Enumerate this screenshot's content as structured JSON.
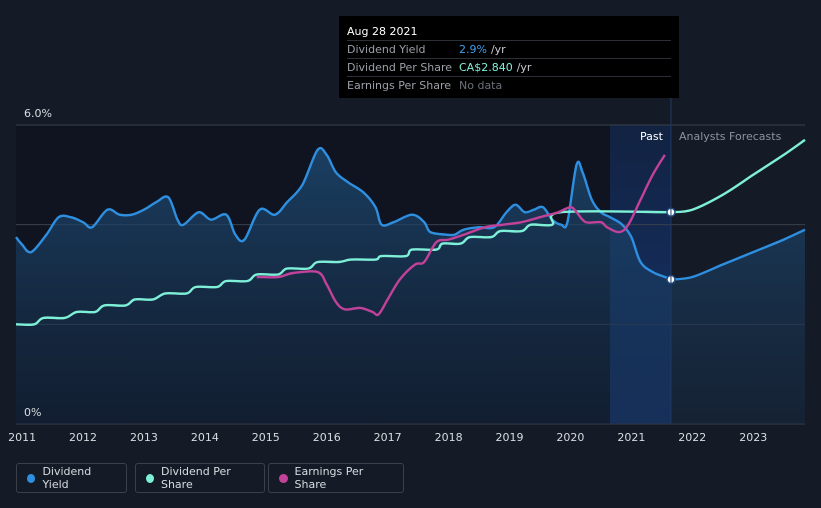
{
  "tooltip": {
    "date": "Aug 28 2021",
    "rows": [
      {
        "label": "Dividend Yield",
        "value": "2.9%",
        "unit": "/yr"
      },
      {
        "label": "Dividend Per Share",
        "value": "CA$2.840",
        "unit": "/yr"
      },
      {
        "label": "Earnings Per Share",
        "value": "No data",
        "unit": ""
      }
    ]
  },
  "legend": [
    {
      "label": "Dividend Yield",
      "color": "#2e8fe0"
    },
    {
      "label": "Dividend Per Share",
      "color": "#7ff0d8"
    },
    {
      "label": "Earnings Per Share",
      "color": "#c2429a"
    }
  ],
  "chart_data": {
    "type": "line",
    "y_axis_labels": [
      "6.0%",
      "0%"
    ],
    "ylim": [
      0,
      6.0
    ],
    "xlim": [
      2010.9,
      2023.85
    ],
    "x_ticks": [
      2011,
      2012,
      2013,
      2014,
      2015,
      2016,
      2017,
      2018,
      2019,
      2020,
      2021,
      2022,
      2023
    ],
    "x_tick_labels": [
      "2011",
      "2012",
      "2013",
      "2014",
      "2015",
      "2016",
      "2017",
      "2018",
      "2019",
      "2020",
      "2021",
      "2022",
      "2023"
    ],
    "past_label": "Past",
    "forecast_label": "Analysts Forecasts",
    "past_end": 2021.65,
    "shade_start": 2020.65,
    "series": [
      {
        "name": "Dividend Yield",
        "color": "#2e8fe0",
        "points": [
          [
            2010.9,
            3.75
          ],
          [
            2011.0,
            3.6
          ],
          [
            2011.15,
            3.45
          ],
          [
            2011.4,
            3.8
          ],
          [
            2011.6,
            4.15
          ],
          [
            2011.8,
            4.15
          ],
          [
            2012.0,
            4.05
          ],
          [
            2012.15,
            3.95
          ],
          [
            2012.4,
            4.3
          ],
          [
            2012.6,
            4.2
          ],
          [
            2012.8,
            4.2
          ],
          [
            2013.0,
            4.3
          ],
          [
            2013.2,
            4.45
          ],
          [
            2013.4,
            4.55
          ],
          [
            2013.55,
            4.1
          ],
          [
            2013.65,
            4.0
          ],
          [
            2013.9,
            4.25
          ],
          [
            2014.1,
            4.1
          ],
          [
            2014.35,
            4.2
          ],
          [
            2014.5,
            3.8
          ],
          [
            2014.65,
            3.7
          ],
          [
            2014.9,
            4.3
          ],
          [
            2015.15,
            4.2
          ],
          [
            2015.35,
            4.45
          ],
          [
            2015.6,
            4.8
          ],
          [
            2015.85,
            5.5
          ],
          [
            2016.0,
            5.4
          ],
          [
            2016.15,
            5.05
          ],
          [
            2016.35,
            4.85
          ],
          [
            2016.6,
            4.65
          ],
          [
            2016.8,
            4.35
          ],
          [
            2016.9,
            4.0
          ],
          [
            2017.1,
            4.05
          ],
          [
            2017.4,
            4.2
          ],
          [
            2017.6,
            4.05
          ],
          [
            2017.7,
            3.85
          ],
          [
            2017.95,
            3.8
          ],
          [
            2018.1,
            3.8
          ],
          [
            2018.25,
            3.9
          ],
          [
            2018.5,
            3.95
          ],
          [
            2018.75,
            3.95
          ],
          [
            2018.95,
            4.25
          ],
          [
            2019.1,
            4.4
          ],
          [
            2019.25,
            4.25
          ],
          [
            2019.4,
            4.3
          ],
          [
            2019.55,
            4.35
          ],
          [
            2019.7,
            4.1
          ],
          [
            2019.85,
            4.0
          ],
          [
            2019.95,
            4.05
          ],
          [
            2020.1,
            5.2
          ],
          [
            2020.2,
            5.05
          ],
          [
            2020.35,
            4.5
          ],
          [
            2020.5,
            4.25
          ],
          [
            2020.65,
            4.15
          ],
          [
            2020.85,
            4.0
          ],
          [
            2021.0,
            3.75
          ],
          [
            2021.15,
            3.25
          ],
          [
            2021.35,
            3.05
          ],
          [
            2021.55,
            2.95
          ],
          [
            2021.65,
            2.9
          ]
        ],
        "forecast": [
          [
            2021.65,
            2.9
          ],
          [
            2022.0,
            2.95
          ],
          [
            2022.5,
            3.2
          ],
          [
            2023.0,
            3.45
          ],
          [
            2023.5,
            3.7
          ],
          [
            2023.85,
            3.9
          ]
        ]
      },
      {
        "name": "Dividend Per Share",
        "color": "#7ff0d8",
        "points": [
          [
            2010.9,
            2.0
          ],
          [
            2011.2,
            2.0
          ],
          [
            2011.35,
            2.13
          ],
          [
            2011.7,
            2.13
          ],
          [
            2011.9,
            2.25
          ],
          [
            2012.2,
            2.25
          ],
          [
            2012.35,
            2.38
          ],
          [
            2012.7,
            2.38
          ],
          [
            2012.85,
            2.5
          ],
          [
            2013.15,
            2.5
          ],
          [
            2013.35,
            2.62
          ],
          [
            2013.7,
            2.62
          ],
          [
            2013.85,
            2.75
          ],
          [
            2014.2,
            2.75
          ],
          [
            2014.35,
            2.87
          ],
          [
            2014.7,
            2.87
          ],
          [
            2014.85,
            3.0
          ],
          [
            2015.2,
            3.0
          ],
          [
            2015.35,
            3.12
          ],
          [
            2015.7,
            3.12
          ],
          [
            2015.85,
            3.25
          ],
          [
            2016.2,
            3.25
          ],
          [
            2016.4,
            3.3
          ],
          [
            2016.8,
            3.3
          ],
          [
            2016.9,
            3.37
          ],
          [
            2017.3,
            3.37
          ],
          [
            2017.4,
            3.5
          ],
          [
            2017.8,
            3.5
          ],
          [
            2017.9,
            3.62
          ],
          [
            2018.2,
            3.62
          ],
          [
            2018.35,
            3.75
          ],
          [
            2018.7,
            3.75
          ],
          [
            2018.85,
            3.87
          ],
          [
            2019.2,
            3.87
          ],
          [
            2019.35,
            4.0
          ],
          [
            2019.7,
            4.0
          ],
          [
            2019.85,
            4.25
          ],
          [
            2021.65,
            4.25
          ]
        ],
        "forecast": [
          [
            2021.65,
            4.25
          ],
          [
            2022.0,
            4.3
          ],
          [
            2022.5,
            4.6
          ],
          [
            2023.0,
            5.0
          ],
          [
            2023.5,
            5.4
          ],
          [
            2023.85,
            5.7
          ]
        ]
      },
      {
        "name": "Earnings Per Share",
        "color": "#c2429a",
        "points": [
          [
            2014.85,
            2.95
          ],
          [
            2015.2,
            2.95
          ],
          [
            2015.45,
            3.03
          ],
          [
            2015.85,
            3.05
          ],
          [
            2016.0,
            2.8
          ],
          [
            2016.15,
            2.45
          ],
          [
            2016.3,
            2.3
          ],
          [
            2016.55,
            2.33
          ],
          [
            2016.75,
            2.25
          ],
          [
            2016.85,
            2.2
          ],
          [
            2017.0,
            2.5
          ],
          [
            2017.2,
            2.9
          ],
          [
            2017.45,
            3.2
          ],
          [
            2017.6,
            3.25
          ],
          [
            2017.8,
            3.65
          ],
          [
            2018.0,
            3.7
          ],
          [
            2018.3,
            3.82
          ],
          [
            2018.6,
            3.95
          ],
          [
            2018.9,
            4.0
          ],
          [
            2019.2,
            4.05
          ],
          [
            2019.5,
            4.15
          ],
          [
            2019.8,
            4.25
          ],
          [
            2020.0,
            4.35
          ],
          [
            2020.1,
            4.25
          ],
          [
            2020.25,
            4.05
          ],
          [
            2020.5,
            4.05
          ],
          [
            2020.6,
            3.95
          ],
          [
            2020.8,
            3.85
          ],
          [
            2020.95,
            4.0
          ],
          [
            2021.15,
            4.5
          ],
          [
            2021.35,
            5.0
          ],
          [
            2021.55,
            5.4
          ]
        ],
        "forecast": []
      }
    ],
    "markers": [
      {
        "series": "Dividend Per Share",
        "x": 2021.65,
        "y": 4.25
      },
      {
        "series": "Dividend Yield",
        "x": 2021.65,
        "y": 2.9
      }
    ]
  }
}
